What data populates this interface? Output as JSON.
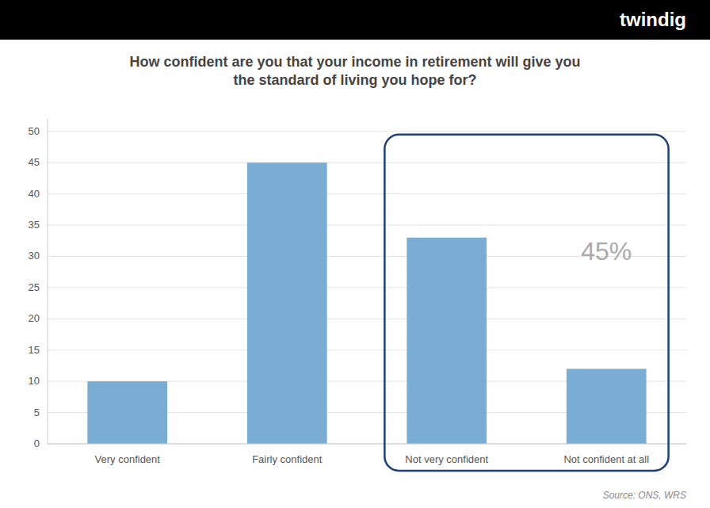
{
  "chart_data": {
    "type": "bar",
    "title": "How confident are you that your income in retirement will give you\nthe standard of living you hope for?",
    "categories": [
      "Very confident",
      "Fairly confident",
      "Not very confident",
      "Not confident at all"
    ],
    "values": [
      10,
      45,
      33,
      12
    ],
    "color": "#7aadd4",
    "ylim": [
      0,
      52
    ],
    "yticks": [
      0,
      5,
      10,
      15,
      20,
      25,
      30,
      35,
      40,
      45,
      50
    ],
    "grid": true,
    "annotation": "45%",
    "source": "Source: ONS, WRS",
    "banner_text": "twindig"
  }
}
